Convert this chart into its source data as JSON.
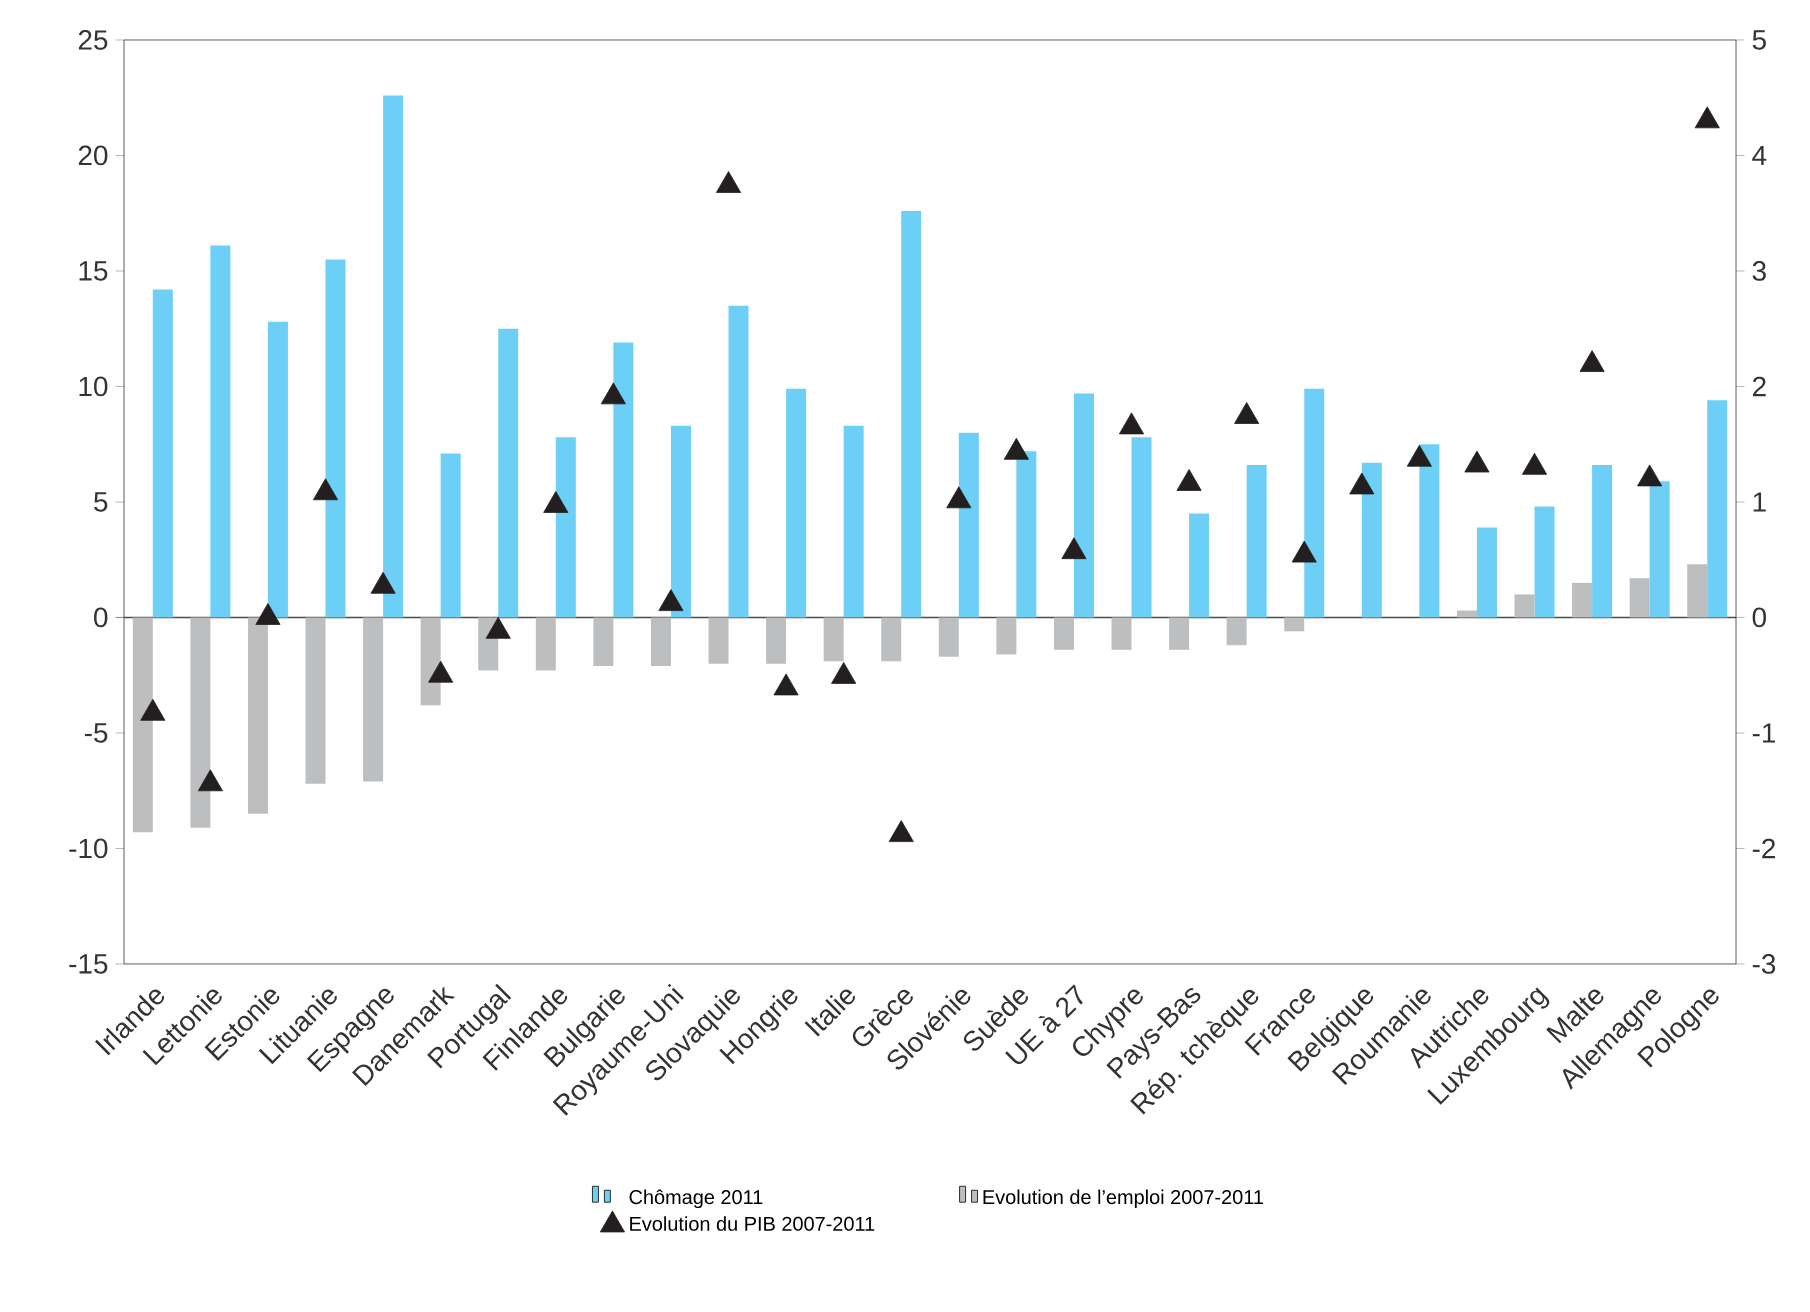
{
  "chart_data": {
    "type": "bar",
    "categories": [
      "Irlande",
      "Lettonie",
      "Estonie",
      "Lituanie",
      "Espagne",
      "Danemark",
      "Portugal",
      "Finlande",
      "Bulgarie",
      "Royaume-Uni",
      "Slovaquie",
      "Hongrie",
      "Italie",
      "Grèce",
      "Slovénie",
      "Suède",
      "UE à 27",
      "Chypre",
      "Pays-Bas",
      "Rép. tchèque",
      "France",
      "Belgique",
      "Roumanie",
      "Autriche",
      "Luxembourg",
      "Malte",
      "Allemagne",
      "Pologne"
    ],
    "series": [
      {
        "name": "Chômage 2011",
        "color": "#6dcff6",
        "values": [
          14.2,
          16.1,
          12.8,
          15.5,
          22.6,
          7.1,
          12.5,
          7.8,
          11.9,
          8.3,
          13.5,
          9.9,
          8.3,
          17.6,
          8.0,
          7.2,
          9.7,
          7.8,
          4.5,
          6.6,
          9.9,
          6.7,
          7.5,
          3.9,
          4.8,
          6.6,
          5.9,
          9.4
        ]
      },
      {
        "name": "Evolution de l’emploi 2007-2011",
        "color": "#bcbec0",
        "values": [
          -9.3,
          -9.1,
          -8.5,
          -7.2,
          -7.1,
          -3.8,
          -2.3,
          -2.3,
          -2.1,
          -2.1,
          -2.0,
          -2.0,
          -1.9,
          -1.9,
          -1.7,
          -1.6,
          -1.4,
          -1.4,
          -1.4,
          -1.2,
          -0.6,
          0,
          0,
          0.3,
          1.0,
          1.5,
          1.7,
          2.3
        ]
      },
      {
        "name": "Evolution du PIB 2007-2011",
        "type": "scatter",
        "axis": "y2",
        "marker": "triangle",
        "color": "#231f20",
        "values": [
          -0.83,
          -1.44,
          0.0,
          1.08,
          0.27,
          -0.5,
          -0.12,
          0.97,
          1.91,
          0.12,
          3.74,
          -0.61,
          -0.51,
          -1.88,
          1.01,
          1.43,
          0.57,
          1.65,
          1.16,
          1.74,
          0.54,
          1.13,
          1.37,
          1.32,
          1.3,
          2.19,
          1.2,
          4.3
        ]
      }
    ],
    "ylim": [
      -15,
      25
    ],
    "yticks": [
      -15,
      -10,
      -5,
      0,
      5,
      10,
      15,
      20,
      25
    ],
    "y2lim": [
      -3,
      5
    ],
    "y2ticks": [
      -3,
      -2,
      -1,
      0,
      1,
      2,
      3,
      4,
      5
    ],
    "legend": "bottom"
  }
}
